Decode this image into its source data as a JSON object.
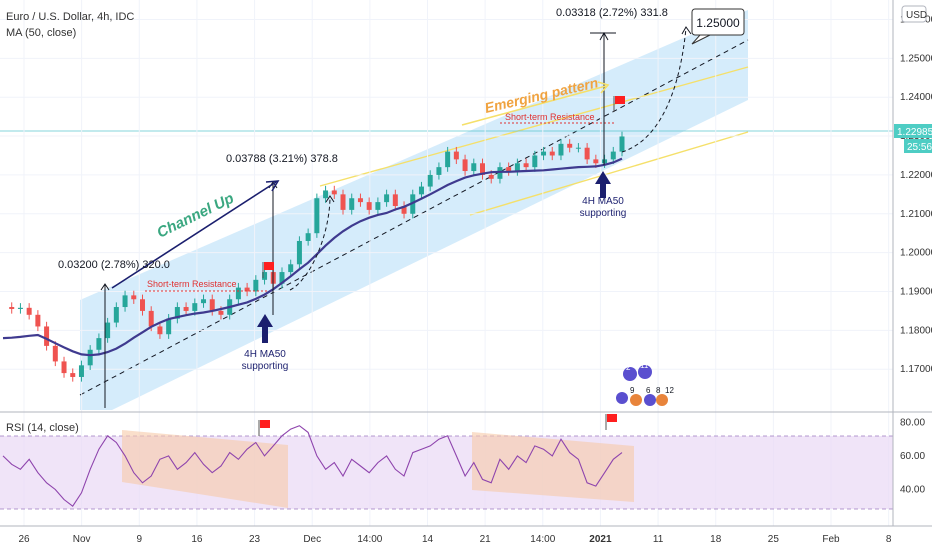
{
  "chart_data": {
    "type": "line",
    "title": "Euro / U.S. Dollar, 4h, IDC",
    "indicator": "MA (50, close)",
    "currency_badge": "USD",
    "price": {
      "current": "1.22985",
      "countdown": "25:56",
      "ylim": [
        1.1595,
        1.2645
      ],
      "y_ticks": [
        "1.17000",
        "1.18000",
        "1.19000",
        "1.20000",
        "1.21000",
        "1.22000",
        "1.23000",
        "1.24000",
        "1.25000",
        "1.26000"
      ],
      "series": [
        {
          "name": "EURUSD close",
          "values": [
            1.186,
            1.1855,
            1.1858,
            1.184,
            1.181,
            1.176,
            1.172,
            1.169,
            1.168,
            1.171,
            1.175,
            1.178,
            1.182,
            1.186,
            1.189,
            1.188,
            1.185,
            1.181,
            1.179,
            1.183,
            1.186,
            1.185,
            1.187,
            1.188,
            1.185,
            1.184,
            1.188,
            1.191,
            1.19,
            1.193,
            1.195,
            1.192,
            1.195,
            1.197,
            1.203,
            1.205,
            1.214,
            1.216,
            1.215,
            1.211,
            1.214,
            1.213,
            1.211,
            1.213,
            1.215,
            1.212,
            1.21,
            1.215,
            1.217,
            1.22,
            1.222,
            1.226,
            1.224,
            1.221,
            1.223,
            1.22,
            1.219,
            1.222,
            1.221,
            1.223,
            1.222,
            1.225,
            1.226,
            1.225,
            1.228,
            1.227,
            1.227,
            1.224,
            1.223,
            1.224,
            1.226,
            1.2299
          ]
        },
        {
          "name": "MA (50, close)",
          "values": [
            1.178,
            1.1781,
            1.1783,
            1.1786,
            1.1788,
            1.1778,
            1.1767,
            1.1756,
            1.1746,
            1.1738,
            1.1736,
            1.1738,
            1.1744,
            1.1753,
            1.1766,
            1.1781,
            1.1795,
            1.1809,
            1.182,
            1.1829,
            1.1834,
            1.1839,
            1.1843,
            1.1846,
            1.185,
            1.1855,
            1.186,
            1.1866,
            1.1872,
            1.1881,
            1.1892,
            1.1906,
            1.1922,
            1.1939,
            1.1957,
            1.1974,
            1.1996,
            1.2018,
            1.2038,
            1.2055,
            1.2069,
            1.2081,
            1.209,
            1.2097,
            1.2102,
            1.2111,
            1.2118,
            1.2128,
            1.2139,
            1.215,
            1.2162,
            1.2174,
            1.2184,
            1.2193,
            1.2199,
            1.2203,
            1.2207,
            1.2208,
            1.2208,
            1.2209,
            1.221,
            1.2211,
            1.2212,
            1.2214,
            1.2216,
            1.2218,
            1.222,
            1.2221,
            1.2222,
            1.2226,
            1.2232,
            1.2242
          ]
        }
      ]
    },
    "x_ticks": [
      "26",
      "Nov",
      "9",
      "16",
      "23",
      "Dec",
      "14:00",
      "14",
      "21",
      "14:00",
      "2021",
      "11",
      "18",
      "25",
      "Feb",
      "8"
    ],
    "annotations": {
      "measure_1": "0.03200 (2.78%) 320.0",
      "measure_2": "0.03788 (3.21%) 378.8",
      "measure_3": "0.03318 (2.72%) 331.8",
      "channel_label": "Channel Up",
      "pattern_label": "Emerging pattern",
      "resistance_1": "Short-term Resistance",
      "resistance_2": "Short-term Resistance",
      "support_1": [
        "4H MA50",
        "supporting"
      ],
      "support_2": [
        "4H MA50",
        "supporting"
      ],
      "target": "1.25000",
      "event_glyphs": [
        "2",
        "11",
        "9",
        "6",
        "8",
        "12"
      ]
    },
    "rsi": {
      "name": "RSI (14, close)",
      "ylim": [
        20,
        85
      ],
      "levels": [
        70,
        30
      ],
      "y_ticks": [
        "80.00",
        "60.00",
        "40.00"
      ],
      "values": [
        60,
        55,
        52,
        58,
        50,
        44,
        40,
        34,
        30,
        38,
        52,
        64,
        72,
        68,
        60,
        50,
        44,
        48,
        58,
        60,
        52,
        56,
        62,
        55,
        50,
        54,
        62,
        58,
        64,
        68,
        60,
        66,
        72,
        76,
        78,
        74,
        60,
        52,
        56,
        48,
        58,
        54,
        50,
        56,
        60,
        52,
        48,
        62,
        64,
        66,
        70,
        72,
        60,
        48,
        56,
        46,
        44,
        58,
        52,
        60,
        56,
        66,
        64,
        60,
        70,
        62,
        58,
        44,
        42,
        50,
        58,
        62
      ]
    }
  }
}
